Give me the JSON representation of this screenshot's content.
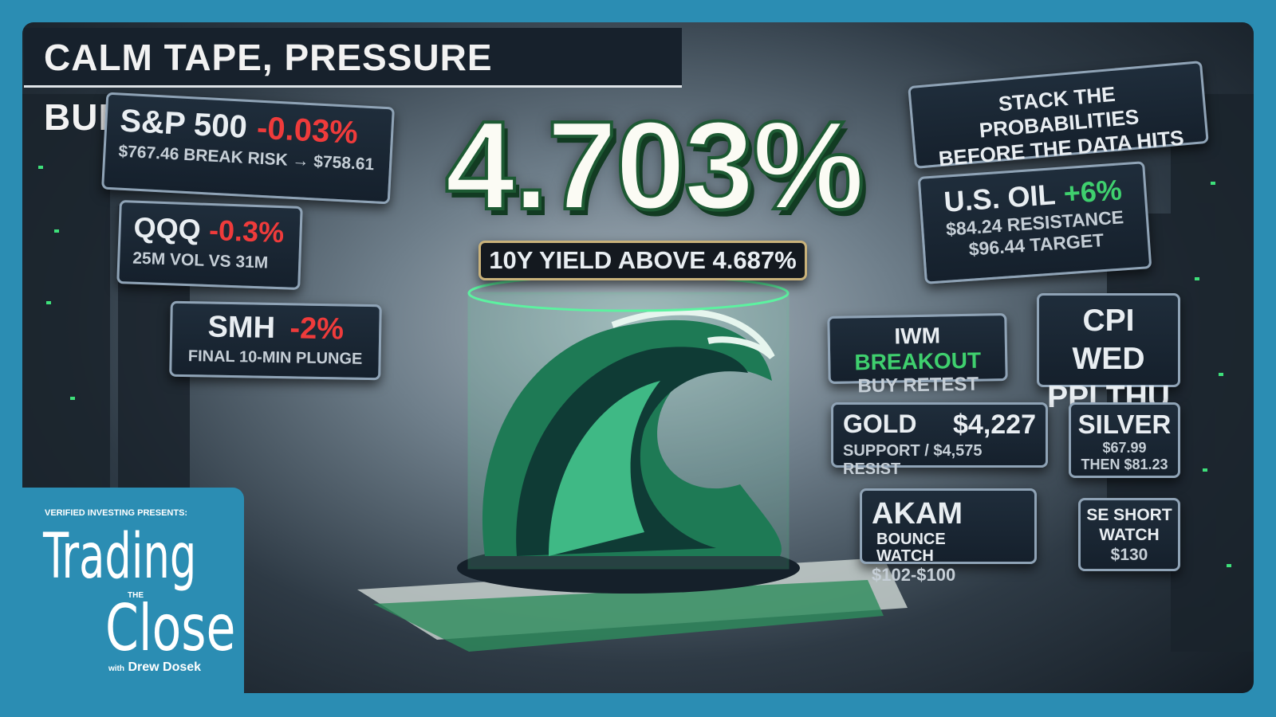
{
  "headline": "CALM TAPE, PRESSURE BUILDING",
  "hero": {
    "value": "4.703%",
    "caption": "10Y YIELD ABOVE 4.687%"
  },
  "tagline": [
    "STACK THE PROBABILITIES",
    "BEFORE THE DATA HITS"
  ],
  "cards": {
    "spx": {
      "ticker": "S&P 500",
      "change": "-0.03%",
      "detail": "$767.46 BREAK RISK → $758.61"
    },
    "qqq": {
      "ticker": "QQQ",
      "change": "-0.3%",
      "detail": "25M VOL VS 31M"
    },
    "smh": {
      "ticker": "SMH",
      "change": "-2%",
      "detail": "FINAL 10-MIN PLUNGE"
    },
    "oil": {
      "ticker": "U.S. OIL",
      "change": "+6%",
      "lines": [
        "$84.24 RESISTANCE",
        "$96.44 TARGET"
      ]
    },
    "iwm": {
      "ticker": "IWM",
      "signal": "BREAKOUT",
      "detail": "BUY RETEST"
    },
    "macro": {
      "lines": [
        "CPI WED",
        "PPI THU"
      ]
    },
    "gold": {
      "ticker": "GOLD",
      "price": "$4,227",
      "detail": "SUPPORT / $4,575 RESIST"
    },
    "silver": {
      "ticker": "SILVER",
      "lines": [
        "$67.99",
        "THEN $81.23"
      ]
    },
    "akam": {
      "ticker": "AKAM",
      "signal": [
        "BOUNCE",
        "WATCH"
      ],
      "detail": "$102-$100"
    },
    "se": {
      "lines": [
        "SE SHORT",
        "WATCH",
        "$130"
      ]
    }
  },
  "show": {
    "presenter": "VERIFIED INVESTING PRESENTS:",
    "title_top": "Trading",
    "title_mid": "THE",
    "title_bottom": "Close",
    "host_prefix": "with",
    "host": "Drew Dosek"
  }
}
